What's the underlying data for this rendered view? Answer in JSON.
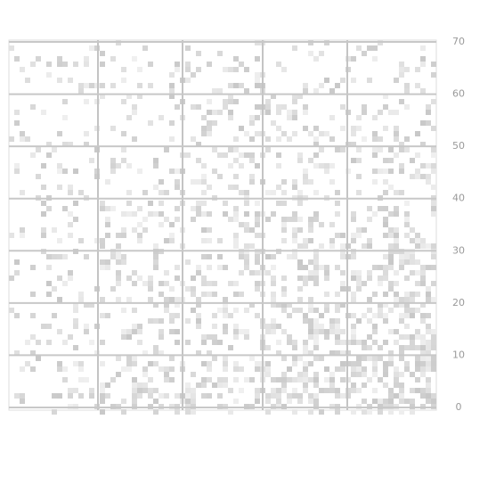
{
  "chart_data": {
    "type": "grid",
    "ylim": [
      0,
      70
    ],
    "yticks": [
      0,
      10,
      20,
      30,
      40,
      50,
      60,
      70
    ],
    "grid": true,
    "color": "#c8c8c8"
  }
}
